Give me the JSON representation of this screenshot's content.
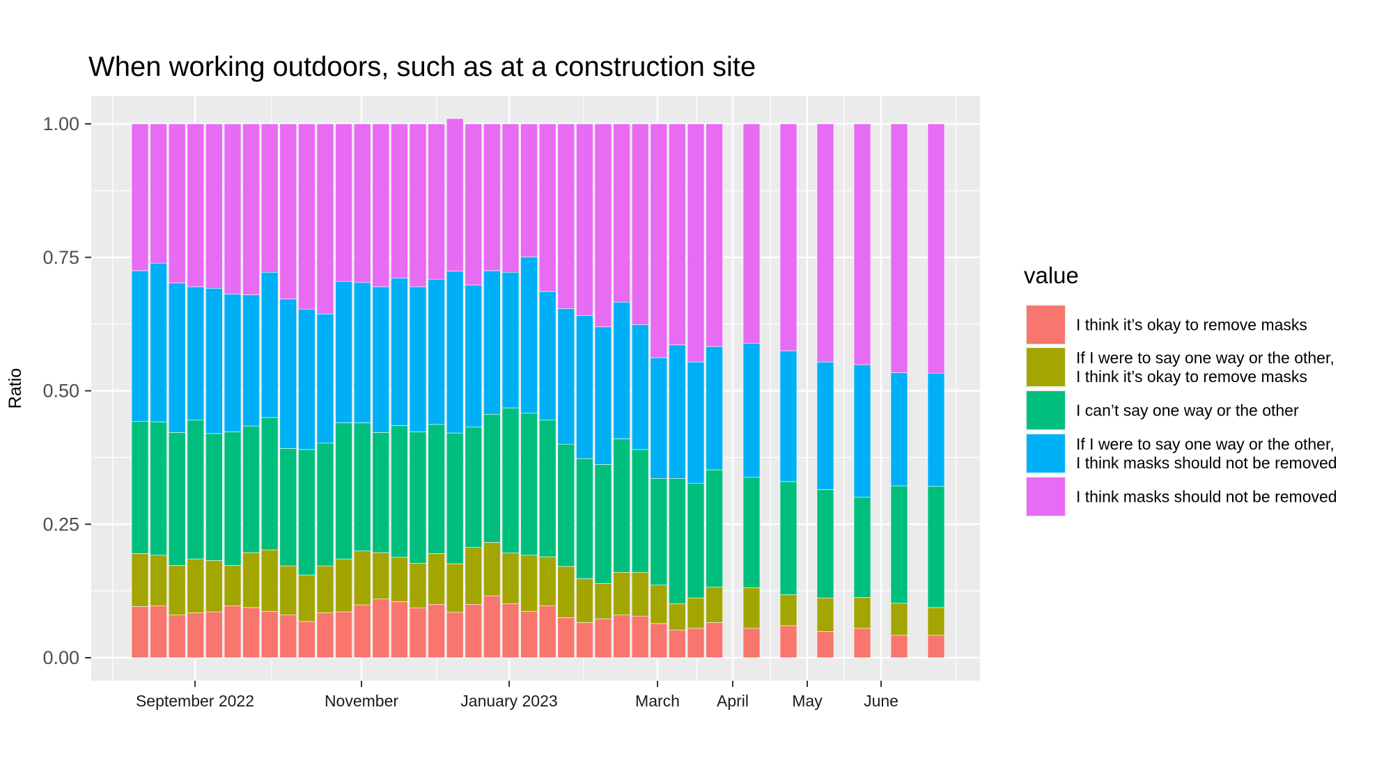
{
  "chart_data": {
    "type": "bar",
    "stacked": true,
    "title": "When working outdoors, such as at a construction site",
    "xlabel": "",
    "ylabel": "Ratio",
    "ylim": [
      0,
      1
    ],
    "y_ticks": [
      "0.00",
      "0.25",
      "0.50",
      "0.75",
      "1.00"
    ],
    "x_tick_labels": [
      "September 2022",
      "November",
      "January 2023",
      "March",
      "April",
      "May",
      "June"
    ],
    "grid": true,
    "legend": {
      "title": "value",
      "placement": "right",
      "entries": [
        [
          "I think it’s okay to remove masks"
        ],
        [
          "If I were to say one way or the other,",
          "I think it’s okay to remove  masks"
        ],
        [
          "I can’t say one way or the other"
        ],
        [
          "If I were to say one way or the other,",
          "I think masks should not be removed"
        ],
        [
          "I think masks should not be removed"
        ]
      ]
    },
    "colors": [
      "#F8766D",
      "#A3A500",
      "#00BF7D",
      "#00B0F6",
      "#E76BF3"
    ],
    "series": [
      {
        "name": "I think masks should not be removed",
        "values": [
          0.096,
          0.097,
          0.08,
          0.084,
          0.086,
          0.097,
          0.094,
          0.087,
          0.08,
          0.068,
          0.084,
          0.086,
          0.099,
          0.11,
          0.105,
          0.093,
          0.1,
          0.085,
          0.1,
          0.116,
          0.101,
          0.087,
          0.097,
          0.075,
          0.066,
          0.073,
          0.08,
          0.078,
          0.064,
          0.052,
          0.055,
          0.066,
          0.055,
          0.06,
          0.049,
          0.055,
          0.042,
          0.042
        ]
      },
      {
        "name": "If I were to say one way or the other, I think masks should not be removed",
        "values": [
          0.099,
          0.095,
          0.093,
          0.101,
          0.096,
          0.076,
          0.103,
          0.115,
          0.092,
          0.087,
          0.088,
          0.099,
          0.101,
          0.087,
          0.083,
          0.084,
          0.095,
          0.091,
          0.107,
          0.1,
          0.095,
          0.105,
          0.092,
          0.096,
          0.082,
          0.066,
          0.08,
          0.082,
          0.072,
          0.049,
          0.057,
          0.066,
          0.076,
          0.058,
          0.063,
          0.058,
          0.06,
          0.052
        ]
      },
      {
        "name": "I can’t say one way or the other",
        "values": [
          0.248,
          0.25,
          0.249,
          0.26,
          0.238,
          0.25,
          0.237,
          0.248,
          0.22,
          0.235,
          0.23,
          0.255,
          0.24,
          0.225,
          0.247,
          0.246,
          0.242,
          0.245,
          0.225,
          0.24,
          0.272,
          0.266,
          0.256,
          0.229,
          0.225,
          0.223,
          0.25,
          0.23,
          0.2,
          0.235,
          0.215,
          0.22,
          0.207,
          0.212,
          0.203,
          0.188,
          0.22,
          0.227
        ]
      },
      {
        "name": "If I were to say one way or the other, I think it’s okay to remove  masks",
        "values": [
          0.282,
          0.297,
          0.28,
          0.25,
          0.272,
          0.258,
          0.246,
          0.272,
          0.28,
          0.263,
          0.242,
          0.265,
          0.263,
          0.273,
          0.276,
          0.272,
          0.272,
          0.303,
          0.266,
          0.269,
          0.254,
          0.293,
          0.241,
          0.254,
          0.268,
          0.258,
          0.256,
          0.234,
          0.226,
          0.25,
          0.227,
          0.231,
          0.251,
          0.245,
          0.239,
          0.248,
          0.212,
          0.212
        ]
      },
      {
        "name": "I think it’s okay to remove masks",
        "values": [
          0.275,
          0.261,
          0.298,
          0.305,
          0.308,
          0.319,
          0.32,
          0.278,
          0.328,
          0.347,
          0.356,
          0.295,
          0.297,
          0.305,
          0.289,
          0.305,
          0.291,
          0.286,
          0.302,
          0.275,
          0.278,
          0.249,
          0.314,
          0.346,
          0.359,
          0.38,
          0.334,
          0.376,
          0.438,
          0.414,
          0.446,
          0.417,
          0.411,
          0.425,
          0.446,
          0.451,
          0.466,
          0.467
        ]
      }
    ]
  }
}
